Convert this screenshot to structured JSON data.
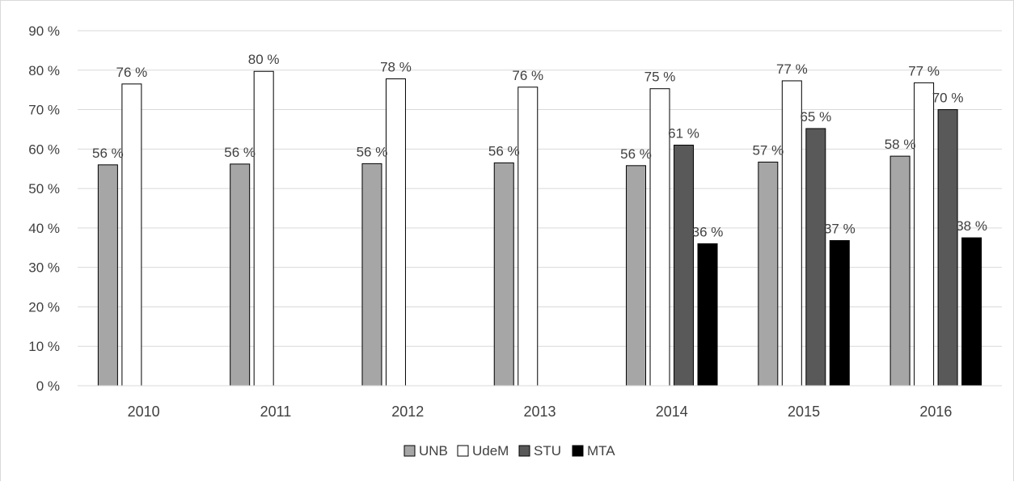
{
  "chart_data": {
    "type": "bar",
    "title": "",
    "xlabel": "",
    "ylabel": "",
    "categories": [
      "2010",
      "2011",
      "2012",
      "2013",
      "2014",
      "2015",
      "2016"
    ],
    "ylim": [
      0,
      90
    ],
    "ytick_step": 10,
    "ytick_labels": [
      "0 %",
      "10 %",
      "20 %",
      "30 %",
      "40 %",
      "50 %",
      "60 %",
      "70 %",
      "80 %",
      "90 %"
    ],
    "grid": true,
    "legend_position": "bottom",
    "series": [
      {
        "name": "UNB",
        "color": "#a6a6a6",
        "values": [
          56,
          56.2,
          56.3,
          56.5,
          55.8,
          56.7,
          58.2
        ],
        "labels": [
          "56 %",
          "56 %",
          "56 %",
          "56 %",
          "56 %",
          "57 %",
          "58 %"
        ]
      },
      {
        "name": "UdeM",
        "color": "#ffffff",
        "values": [
          76.5,
          79.7,
          77.8,
          75.7,
          75.3,
          77.3,
          76.8
        ],
        "labels": [
          "76 %",
          "80 %",
          "78 %",
          "76 %",
          "75 %",
          "77 %",
          "77 %"
        ]
      },
      {
        "name": "STU",
        "color": "#595959",
        "values": [
          null,
          null,
          null,
          null,
          61,
          65.2,
          70
        ],
        "labels": [
          "",
          "",
          "",
          "",
          "61 %",
          "65 %",
          "70 %"
        ]
      },
      {
        "name": "MTA",
        "color": "#000000",
        "values": [
          null,
          null,
          null,
          null,
          36,
          36.8,
          37.5
        ],
        "labels": [
          "",
          "",
          "",
          "",
          "36 %",
          "37 %",
          "38 %"
        ]
      }
    ]
  }
}
